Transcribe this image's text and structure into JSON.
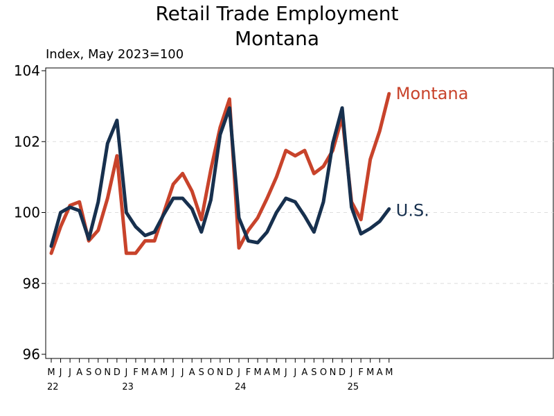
{
  "chart_data": {
    "type": "line",
    "title": "Retail Trade Employment",
    "subtitle": "Montana",
    "ylabel": "Index, May 2023=100",
    "xlabel": "",
    "ylim": [
      96,
      104
    ],
    "yticks": [
      "96",
      "98",
      "100",
      "102",
      "104"
    ],
    "grid": true,
    "month_labels": [
      "M",
      "J",
      "J",
      "A",
      "S",
      "O",
      "N",
      "D",
      "J",
      "F",
      "M",
      "A",
      "M",
      "J",
      "J",
      "A",
      "S",
      "O",
      "N",
      "D",
      "J",
      "F",
      "M",
      "A",
      "M",
      "J",
      "J",
      "A",
      "S",
      "O",
      "N",
      "D",
      "J",
      "F",
      "M",
      "A",
      "M"
    ],
    "year_labels": [
      {
        "index": 0,
        "label": "22"
      },
      {
        "index": 8,
        "label": "23"
      },
      {
        "index": 20,
        "label": "24"
      },
      {
        "index": 32,
        "label": "25"
      }
    ],
    "x": [
      "2022-05",
      "2022-06",
      "2022-07",
      "2022-08",
      "2022-09",
      "2022-10",
      "2022-11",
      "2022-12",
      "2023-01",
      "2023-02",
      "2023-03",
      "2023-04",
      "2023-05",
      "2023-06",
      "2023-07",
      "2023-08",
      "2023-09",
      "2023-10",
      "2023-11",
      "2023-12",
      "2024-01",
      "2024-02",
      "2024-03",
      "2024-04",
      "2024-05",
      "2024-06",
      "2024-07",
      "2024-08",
      "2024-09",
      "2024-10",
      "2024-11",
      "2024-12",
      "2025-01",
      "2025-02",
      "2025-03",
      "2025-04",
      "2025-05"
    ],
    "series": [
      {
        "name": "Montana",
        "color": "#c8432b",
        "values": [
          98.85,
          99.6,
          100.2,
          100.3,
          99.2,
          99.5,
          100.4,
          101.6,
          98.85,
          98.85,
          99.2,
          99.2,
          100.0,
          100.8,
          101.1,
          100.6,
          99.8,
          101.2,
          102.4,
          103.2,
          99.0,
          99.5,
          99.85,
          100.4,
          101.0,
          101.75,
          101.6,
          101.75,
          101.1,
          101.3,
          101.75,
          102.7,
          100.3,
          99.8,
          101.5,
          102.3,
          103.35
        ]
      },
      {
        "name": "U.S.",
        "color": "#17304e",
        "values": [
          99.05,
          100.0,
          100.15,
          100.05,
          99.25,
          100.3,
          101.95,
          102.6,
          100.0,
          99.6,
          99.35,
          99.45,
          99.95,
          100.4,
          100.4,
          100.1,
          99.45,
          100.35,
          102.2,
          102.95,
          99.85,
          99.2,
          99.15,
          99.45,
          100.0,
          100.4,
          100.3,
          99.9,
          99.45,
          100.3,
          101.95,
          102.95,
          100.15,
          99.4,
          99.55,
          99.75,
          100.1
        ]
      }
    ]
  }
}
